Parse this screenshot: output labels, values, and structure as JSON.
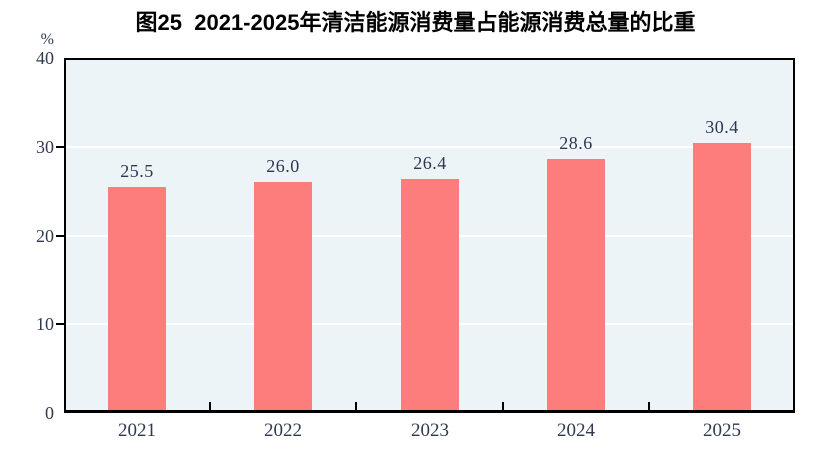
{
  "chart_data": {
    "type": "bar",
    "title": "图25  2021-2025年清洁能源消费量占能源消费总量的比重",
    "unit_label": "%",
    "categories": [
      "2021",
      "2022",
      "2023",
      "2024",
      "2025"
    ],
    "values": [
      25.5,
      26.0,
      26.4,
      28.6,
      30.4
    ],
    "data_labels": [
      "25.5",
      "26.0",
      "26.4",
      "28.6",
      "30.4"
    ],
    "xlabel": "",
    "ylabel": "%",
    "ylim": [
      0,
      40
    ],
    "yticks": [
      0,
      10,
      20,
      30,
      40
    ],
    "grid": "horizontal white gridlines at 10, 20, 30",
    "legend_position": "none"
  },
  "colors": {
    "bar": "#FD7C7C",
    "plot_background": "#EDF4F8",
    "gridline": "#FFFFFF",
    "frame": "#000000",
    "tick_text": "#2F3A50",
    "title_text": "#000000"
  }
}
